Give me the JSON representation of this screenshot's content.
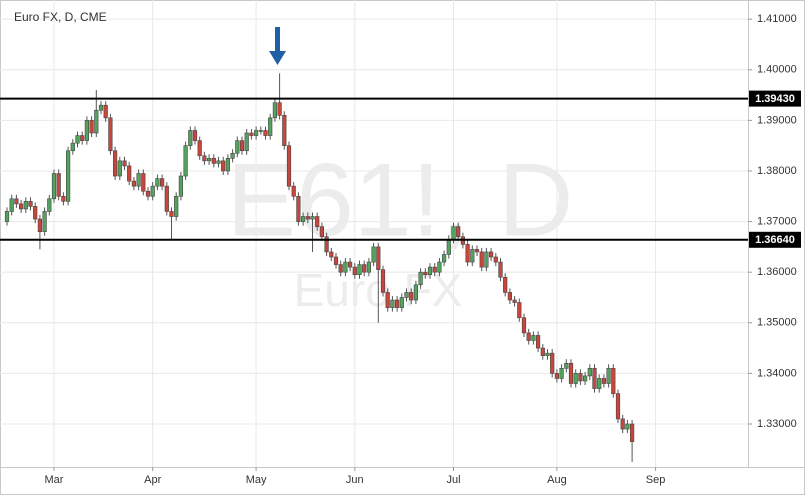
{
  "chart_data": {
    "type": "candlestick",
    "title": "Euro FX, D, CME",
    "watermark": "E61!, D",
    "watermark_subtitle": "Euro FX",
    "up_color": "#53a35f",
    "down_color": "#c9463d",
    "grid": true,
    "categories": [
      null,
      null,
      null,
      null,
      null,
      null,
      null,
      null,
      null,
      null,
      "Mar",
      null,
      null,
      null,
      null,
      null,
      null,
      null,
      null,
      null,
      null,
      null,
      null,
      null,
      null,
      null,
      null,
      null,
      null,
      null,
      null,
      "Apr",
      null,
      null,
      null,
      null,
      null,
      null,
      null,
      null,
      null,
      null,
      null,
      null,
      null,
      null,
      null,
      null,
      null,
      null,
      null,
      null,
      null,
      "May",
      null,
      null,
      null,
      null,
      null,
      null,
      null,
      null,
      null,
      null,
      null,
      null,
      null,
      null,
      null,
      null,
      null,
      null,
      null,
      null,
      "Jun",
      null,
      null,
      null,
      null,
      null,
      null,
      null,
      null,
      null,
      null,
      null,
      null,
      null,
      null,
      null,
      null,
      null,
      null,
      null,
      null,
      "Jul",
      null,
      null,
      null,
      null,
      null,
      null,
      null,
      null,
      null,
      null,
      null,
      null,
      null,
      null,
      null,
      null,
      null,
      null,
      null,
      null,
      null,
      "Aug",
      null,
      null,
      null,
      null,
      null,
      null,
      null,
      null,
      null,
      null,
      null,
      null,
      null,
      null,
      null,
      null,
      null,
      null,
      null,
      null,
      "Sep",
      null,
      null,
      null,
      null,
      null,
      null,
      null,
      null,
      null,
      null,
      null,
      null,
      null,
      null,
      null,
      null,
      null,
      null,
      null
    ],
    "open": [
      1.37,
      1.372,
      1.3745,
      1.3735,
      1.3725,
      1.374,
      1.373,
      1.3705,
      1.368,
      1.372,
      1.3745,
      1.3795,
      1.375,
      1.374,
      1.384,
      1.3855,
      1.387,
      1.386,
      1.39,
      1.3875,
      1.392,
      1.393,
      1.3905,
      1.384,
      1.379,
      1.382,
      1.381,
      1.378,
      1.377,
      1.3795,
      1.376,
      1.375,
      1.377,
      1.3785,
      1.377,
      1.372,
      1.371,
      1.375,
      1.379,
      1.385,
      1.388,
      1.386,
      1.383,
      1.382,
      1.3825,
      1.3815,
      1.382,
      1.38,
      1.3825,
      1.3835,
      1.386,
      1.384,
      1.3875,
      1.387,
      1.388,
      1.388,
      1.387,
      1.3905,
      1.3935,
      1.391,
      1.385,
      1.377,
      1.375,
      1.37,
      1.371,
      1.3705,
      1.371,
      1.369,
      1.367,
      1.364,
      1.363,
      1.3615,
      1.36,
      1.362,
      1.361,
      1.3595,
      1.3615,
      1.36,
      1.362,
      1.365,
      1.3605,
      1.356,
      1.353,
      1.3545,
      1.353,
      1.355,
      1.356,
      1.3545,
      1.3575,
      1.36,
      1.3595,
      1.361,
      1.36,
      1.362,
      1.3635,
      1.3665,
      1.369,
      1.367,
      1.3655,
      1.362,
      1.3645,
      1.364,
      1.361,
      1.364,
      1.363,
      1.362,
      1.359,
      1.356,
      1.3545,
      1.354,
      1.351,
      1.348,
      1.3465,
      1.3475,
      1.345,
      1.3435,
      1.344,
      1.34,
      1.339,
      1.341,
      1.342,
      1.338,
      1.34,
      1.3385,
      1.3395,
      1.341,
      1.337,
      1.339,
      1.338,
      1.341,
      1.336,
      1.331,
      1.329,
      1.33,
      null,
      null,
      null,
      null,
      null,
      null,
      null,
      null,
      null,
      null,
      null,
      null,
      null,
      null,
      null,
      null,
      null,
      null,
      null,
      null,
      null,
      null,
      null,
      null
    ],
    "high": [
      1.3728,
      1.3753,
      1.3753,
      1.3743,
      1.3748,
      1.3748,
      1.3738,
      1.3713,
      1.3728,
      1.3753,
      1.3803,
      1.3803,
      1.3758,
      1.3848,
      1.3863,
      1.3878,
      1.3878,
      1.3908,
      1.3908,
      1.396,
      1.3938,
      1.3938,
      1.3913,
      1.3848,
      1.3828,
      1.3828,
      1.3818,
      1.3788,
      1.3803,
      1.3803,
      1.3768,
      1.3778,
      1.3793,
      1.3793,
      1.3778,
      1.3728,
      1.3758,
      1.3798,
      1.3858,
      1.3888,
      1.3888,
      1.3868,
      1.3838,
      1.3833,
      1.3833,
      1.3828,
      1.3828,
      1.3833,
      1.3843,
      1.3868,
      1.3868,
      1.3883,
      1.3883,
      1.3888,
      1.3888,
      1.3888,
      1.3913,
      1.3943,
      1.3993,
      1.3918,
      1.3858,
      1.3778,
      1.3758,
      1.3718,
      1.3718,
      1.3718,
      1.3718,
      1.3698,
      1.3678,
      1.3648,
      1.3638,
      1.3623,
      1.3628,
      1.3628,
      1.3618,
      1.3623,
      1.3623,
      1.3628,
      1.3658,
      1.3658,
      1.3613,
      1.3568,
      1.3553,
      1.3553,
      1.3558,
      1.3568,
      1.3568,
      1.3583,
      1.3608,
      1.3608,
      1.3618,
      1.3618,
      1.3628,
      1.3643,
      1.3673,
      1.3698,
      1.3698,
      1.3678,
      1.3663,
      1.3653,
      1.3653,
      1.3648,
      1.3648,
      1.3648,
      1.3638,
      1.3628,
      1.3598,
      1.3568,
      1.3553,
      1.3548,
      1.3518,
      1.3488,
      1.3483,
      1.3483,
      1.3458,
      1.3448,
      1.3448,
      1.3408,
      1.3418,
      1.3428,
      1.3428,
      1.3408,
      1.3408,
      1.3403,
      1.3418,
      1.3418,
      1.3398,
      1.3398,
      1.3418,
      1.3418,
      1.3368,
      1.3318,
      1.3308,
      1.3308,
      null,
      null,
      null,
      null,
      null,
      null,
      null,
      null,
      null,
      null,
      null,
      null,
      null,
      null,
      null,
      null,
      null,
      null,
      null,
      null,
      null,
      null,
      null,
      null
    ],
    "low": [
      1.3692,
      1.3712,
      1.3727,
      1.3717,
      1.3717,
      1.3722,
      1.3697,
      1.3645,
      1.3672,
      1.3712,
      1.3737,
      1.3742,
      1.3732,
      1.3732,
      1.3832,
      1.3847,
      1.3852,
      1.3852,
      1.3867,
      1.3867,
      1.3912,
      1.3897,
      1.3832,
      1.3782,
      1.3782,
      1.3802,
      1.3772,
      1.3762,
      1.3762,
      1.3752,
      1.3742,
      1.3742,
      1.3762,
      1.3762,
      1.3712,
      1.3665,
      1.3702,
      1.3742,
      1.3782,
      1.3842,
      1.3852,
      1.3822,
      1.3812,
      1.3812,
      1.3807,
      1.3807,
      1.3792,
      1.3792,
      1.3817,
      1.3827,
      1.3832,
      1.3832,
      1.3862,
      1.3862,
      1.3872,
      1.3862,
      1.3862,
      1.3897,
      1.3902,
      1.3842,
      1.3762,
      1.3742,
      1.3692,
      1.3692,
      1.3697,
      1.364,
      1.3682,
      1.3662,
      1.3632,
      1.3622,
      1.3607,
      1.3592,
      1.3592,
      1.3602,
      1.3587,
      1.3587,
      1.3592,
      1.3592,
      1.3612,
      1.35,
      1.3552,
      1.3522,
      1.3522,
      1.3522,
      1.3522,
      1.3542,
      1.3537,
      1.3537,
      1.3567,
      1.3587,
      1.3587,
      1.3592,
      1.3592,
      1.3612,
      1.3627,
      1.3657,
      1.3662,
      1.3647,
      1.3612,
      1.3612,
      1.3632,
      1.3602,
      1.3602,
      1.3622,
      1.3612,
      1.3582,
      1.3552,
      1.3537,
      1.3532,
      1.3502,
      1.3472,
      1.3457,
      1.3457,
      1.3442,
      1.3427,
      1.3427,
      1.3392,
      1.3382,
      1.3382,
      1.3402,
      1.3372,
      1.3372,
      1.3377,
      1.3377,
      1.3387,
      1.3362,
      1.3362,
      1.3372,
      1.3372,
      1.3352,
      1.3302,
      1.3282,
      1.3282,
      1.3225,
      null,
      null,
      null,
      null,
      null,
      null,
      null,
      null,
      null,
      null,
      null,
      null,
      null,
      null,
      null,
      null,
      null,
      null,
      null,
      null,
      null,
      null,
      null,
      null
    ],
    "close": [
      1.372,
      1.3745,
      1.3735,
      1.3725,
      1.374,
      1.373,
      1.3705,
      1.368,
      1.372,
      1.3745,
      1.3795,
      1.375,
      1.374,
      1.384,
      1.3855,
      1.387,
      1.386,
      1.39,
      1.3875,
      1.392,
      1.393,
      1.3905,
      1.384,
      1.379,
      1.382,
      1.381,
      1.378,
      1.377,
      1.3795,
      1.376,
      1.375,
      1.377,
      1.3785,
      1.377,
      1.372,
      1.371,
      1.375,
      1.379,
      1.385,
      1.388,
      1.386,
      1.383,
      1.382,
      1.3825,
      1.3815,
      1.382,
      1.38,
      1.3825,
      1.3835,
      1.386,
      1.384,
      1.3875,
      1.387,
      1.388,
      1.388,
      1.387,
      1.3905,
      1.3935,
      1.391,
      1.385,
      1.377,
      1.375,
      1.37,
      1.371,
      1.3705,
      1.371,
      1.369,
      1.367,
      1.364,
      1.363,
      1.3615,
      1.36,
      1.362,
      1.361,
      1.3595,
      1.3615,
      1.36,
      1.362,
      1.365,
      1.3605,
      1.356,
      1.353,
      1.3545,
      1.353,
      1.355,
      1.356,
      1.3545,
      1.3575,
      1.36,
      1.3595,
      1.361,
      1.36,
      1.362,
      1.3635,
      1.3665,
      1.369,
      1.367,
      1.3655,
      1.362,
      1.3645,
      1.364,
      1.361,
      1.364,
      1.363,
      1.362,
      1.359,
      1.356,
      1.3545,
      1.354,
      1.351,
      1.348,
      1.3465,
      1.3475,
      1.345,
      1.3435,
      1.344,
      1.34,
      1.339,
      1.341,
      1.342,
      1.338,
      1.34,
      1.3385,
      1.3395,
      1.341,
      1.337,
      1.339,
      1.338,
      1.341,
      1.336,
      1.331,
      1.329,
      1.33,
      1.3265,
      null,
      null,
      null,
      null,
      null,
      null,
      null,
      null,
      null,
      null,
      null,
      null,
      null,
      null,
      null,
      null,
      null,
      null,
      null,
      null,
      null,
      null,
      null,
      null
    ],
    "ylim": [
      1.3215,
      1.4128
    ],
    "yticks": [
      {
        "value": 1.33,
        "label": "1.33000"
      },
      {
        "value": 1.34,
        "label": "1.34000"
      },
      {
        "value": 1.35,
        "label": "1.35000"
      },
      {
        "value": 1.36,
        "label": "1.36000"
      },
      {
        "value": 1.37,
        "label": "1.37000"
      },
      {
        "value": 1.38,
        "label": "1.38000"
      },
      {
        "value": 1.39,
        "label": "1.39000"
      },
      {
        "value": 1.4,
        "label": "1.40000"
      },
      {
        "value": 1.41,
        "label": "1.41000"
      }
    ],
    "levels": [
      {
        "value": 1.3943,
        "label": "1.39430"
      },
      {
        "value": 1.3664,
        "label": "1.36640"
      }
    ]
  }
}
